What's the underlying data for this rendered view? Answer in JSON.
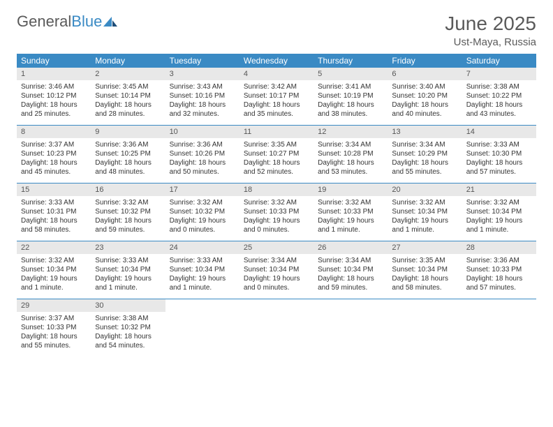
{
  "logo": {
    "text_gray": "General",
    "text_blue": "Blue"
  },
  "title": "June 2025",
  "location": "Ust-Maya, Russia",
  "weekdays": [
    "Sunday",
    "Monday",
    "Tuesday",
    "Wednesday",
    "Thursday",
    "Friday",
    "Saturday"
  ],
  "colors": {
    "header_bar": "#3a8ac4",
    "daynum_bg": "#e8e8e8",
    "text": "#333333",
    "title_text": "#5a5a5a"
  },
  "weeks": [
    [
      {
        "n": "1",
        "sunrise": "Sunrise: 3:46 AM",
        "sunset": "Sunset: 10:12 PM",
        "daylight": "Daylight: 18 hours and 25 minutes."
      },
      {
        "n": "2",
        "sunrise": "Sunrise: 3:45 AM",
        "sunset": "Sunset: 10:14 PM",
        "daylight": "Daylight: 18 hours and 28 minutes."
      },
      {
        "n": "3",
        "sunrise": "Sunrise: 3:43 AM",
        "sunset": "Sunset: 10:16 PM",
        "daylight": "Daylight: 18 hours and 32 minutes."
      },
      {
        "n": "4",
        "sunrise": "Sunrise: 3:42 AM",
        "sunset": "Sunset: 10:17 PM",
        "daylight": "Daylight: 18 hours and 35 minutes."
      },
      {
        "n": "5",
        "sunrise": "Sunrise: 3:41 AM",
        "sunset": "Sunset: 10:19 PM",
        "daylight": "Daylight: 18 hours and 38 minutes."
      },
      {
        "n": "6",
        "sunrise": "Sunrise: 3:40 AM",
        "sunset": "Sunset: 10:20 PM",
        "daylight": "Daylight: 18 hours and 40 minutes."
      },
      {
        "n": "7",
        "sunrise": "Sunrise: 3:38 AM",
        "sunset": "Sunset: 10:22 PM",
        "daylight": "Daylight: 18 hours and 43 minutes."
      }
    ],
    [
      {
        "n": "8",
        "sunrise": "Sunrise: 3:37 AM",
        "sunset": "Sunset: 10:23 PM",
        "daylight": "Daylight: 18 hours and 45 minutes."
      },
      {
        "n": "9",
        "sunrise": "Sunrise: 3:36 AM",
        "sunset": "Sunset: 10:25 PM",
        "daylight": "Daylight: 18 hours and 48 minutes."
      },
      {
        "n": "10",
        "sunrise": "Sunrise: 3:36 AM",
        "sunset": "Sunset: 10:26 PM",
        "daylight": "Daylight: 18 hours and 50 minutes."
      },
      {
        "n": "11",
        "sunrise": "Sunrise: 3:35 AM",
        "sunset": "Sunset: 10:27 PM",
        "daylight": "Daylight: 18 hours and 52 minutes."
      },
      {
        "n": "12",
        "sunrise": "Sunrise: 3:34 AM",
        "sunset": "Sunset: 10:28 PM",
        "daylight": "Daylight: 18 hours and 53 minutes."
      },
      {
        "n": "13",
        "sunrise": "Sunrise: 3:34 AM",
        "sunset": "Sunset: 10:29 PM",
        "daylight": "Daylight: 18 hours and 55 minutes."
      },
      {
        "n": "14",
        "sunrise": "Sunrise: 3:33 AM",
        "sunset": "Sunset: 10:30 PM",
        "daylight": "Daylight: 18 hours and 57 minutes."
      }
    ],
    [
      {
        "n": "15",
        "sunrise": "Sunrise: 3:33 AM",
        "sunset": "Sunset: 10:31 PM",
        "daylight": "Daylight: 18 hours and 58 minutes."
      },
      {
        "n": "16",
        "sunrise": "Sunrise: 3:32 AM",
        "sunset": "Sunset: 10:32 PM",
        "daylight": "Daylight: 18 hours and 59 minutes."
      },
      {
        "n": "17",
        "sunrise": "Sunrise: 3:32 AM",
        "sunset": "Sunset: 10:32 PM",
        "daylight": "Daylight: 19 hours and 0 minutes."
      },
      {
        "n": "18",
        "sunrise": "Sunrise: 3:32 AM",
        "sunset": "Sunset: 10:33 PM",
        "daylight": "Daylight: 19 hours and 0 minutes."
      },
      {
        "n": "19",
        "sunrise": "Sunrise: 3:32 AM",
        "sunset": "Sunset: 10:33 PM",
        "daylight": "Daylight: 19 hours and 1 minute."
      },
      {
        "n": "20",
        "sunrise": "Sunrise: 3:32 AM",
        "sunset": "Sunset: 10:34 PM",
        "daylight": "Daylight: 19 hours and 1 minute."
      },
      {
        "n": "21",
        "sunrise": "Sunrise: 3:32 AM",
        "sunset": "Sunset: 10:34 PM",
        "daylight": "Daylight: 19 hours and 1 minute."
      }
    ],
    [
      {
        "n": "22",
        "sunrise": "Sunrise: 3:32 AM",
        "sunset": "Sunset: 10:34 PM",
        "daylight": "Daylight: 19 hours and 1 minute."
      },
      {
        "n": "23",
        "sunrise": "Sunrise: 3:33 AM",
        "sunset": "Sunset: 10:34 PM",
        "daylight": "Daylight: 19 hours and 1 minute."
      },
      {
        "n": "24",
        "sunrise": "Sunrise: 3:33 AM",
        "sunset": "Sunset: 10:34 PM",
        "daylight": "Daylight: 19 hours and 1 minute."
      },
      {
        "n": "25",
        "sunrise": "Sunrise: 3:34 AM",
        "sunset": "Sunset: 10:34 PM",
        "daylight": "Daylight: 19 hours and 0 minutes."
      },
      {
        "n": "26",
        "sunrise": "Sunrise: 3:34 AM",
        "sunset": "Sunset: 10:34 PM",
        "daylight": "Daylight: 18 hours and 59 minutes."
      },
      {
        "n": "27",
        "sunrise": "Sunrise: 3:35 AM",
        "sunset": "Sunset: 10:34 PM",
        "daylight": "Daylight: 18 hours and 58 minutes."
      },
      {
        "n": "28",
        "sunrise": "Sunrise: 3:36 AM",
        "sunset": "Sunset: 10:33 PM",
        "daylight": "Daylight: 18 hours and 57 minutes."
      }
    ],
    [
      {
        "n": "29",
        "sunrise": "Sunrise: 3:37 AM",
        "sunset": "Sunset: 10:33 PM",
        "daylight": "Daylight: 18 hours and 55 minutes."
      },
      {
        "n": "30",
        "sunrise": "Sunrise: 3:38 AM",
        "sunset": "Sunset: 10:32 PM",
        "daylight": "Daylight: 18 hours and 54 minutes."
      },
      null,
      null,
      null,
      null,
      null
    ]
  ]
}
